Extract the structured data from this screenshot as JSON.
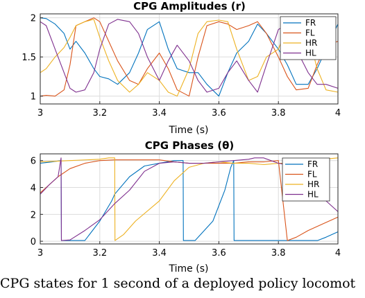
{
  "caption": "CPG states for 1 second of a deployed policy locomot",
  "colors": {
    "FR": "#0072BD",
    "FL": "#D95319",
    "HR": "#EDB120",
    "HL": "#7E2F8E"
  },
  "chart_data": [
    {
      "type": "line",
      "title": "CPG Amplitudes (r)",
      "xlabel": "Time (s)",
      "ylabel": "",
      "xlim": [
        3,
        4
      ],
      "ylim": [
        0.9,
        2.05
      ],
      "xticks": [
        3,
        3.2,
        3.4,
        3.6,
        3.8,
        4
      ],
      "xtick_labels": [
        "3",
        "3.2",
        "3.4",
        "3.6",
        "3.8",
        "4"
      ],
      "yticks": [
        1,
        1.5,
        2
      ],
      "ytick_labels": [
        "1",
        "1.5",
        "2"
      ],
      "grid": true,
      "legend": "top-right",
      "series": [
        {
          "name": "FR",
          "color": "#0072BD",
          "x": [
            3.0,
            3.02,
            3.05,
            3.08,
            3.1,
            3.12,
            3.15,
            3.18,
            3.2,
            3.23,
            3.26,
            3.3,
            3.33,
            3.36,
            3.4,
            3.43,
            3.46,
            3.5,
            3.53,
            3.56,
            3.6,
            3.63,
            3.66,
            3.7,
            3.73,
            3.76,
            3.8,
            3.83,
            3.86,
            3.9,
            3.93,
            3.96,
            4.0
          ],
          "y": [
            2.0,
            1.99,
            1.92,
            1.8,
            1.6,
            1.7,
            1.55,
            1.35,
            1.25,
            1.22,
            1.15,
            1.3,
            1.55,
            1.85,
            1.95,
            1.6,
            1.35,
            1.3,
            1.3,
            1.15,
            1.0,
            1.3,
            1.55,
            1.7,
            1.92,
            1.8,
            1.6,
            1.4,
            1.15,
            1.15,
            1.35,
            1.6,
            1.92
          ]
        },
        {
          "name": "FL",
          "color": "#D95319",
          "x": [
            3.0,
            3.02,
            3.05,
            3.08,
            3.1,
            3.12,
            3.15,
            3.18,
            3.2,
            3.23,
            3.26,
            3.3,
            3.33,
            3.36,
            3.4,
            3.43,
            3.46,
            3.5,
            3.53,
            3.56,
            3.6,
            3.63,
            3.66,
            3.7,
            3.73,
            3.76,
            3.8,
            3.83,
            3.86,
            3.9,
            3.93,
            3.96,
            4.0
          ],
          "y": [
            1.0,
            1.01,
            1.0,
            1.08,
            1.4,
            1.9,
            1.95,
            2.0,
            1.95,
            1.7,
            1.45,
            1.2,
            1.15,
            1.35,
            1.55,
            1.35,
            1.08,
            1.0,
            1.5,
            1.9,
            1.95,
            1.92,
            1.85,
            1.9,
            1.95,
            1.8,
            1.5,
            1.25,
            1.08,
            1.1,
            1.4,
            1.65,
            1.7
          ]
        },
        {
          "name": "HR",
          "color": "#EDB120",
          "x": [
            3.0,
            3.02,
            3.05,
            3.08,
            3.1,
            3.12,
            3.15,
            3.18,
            3.2,
            3.23,
            3.26,
            3.3,
            3.33,
            3.36,
            3.4,
            3.43,
            3.46,
            3.5,
            3.53,
            3.56,
            3.6,
            3.63,
            3.66,
            3.7,
            3.73,
            3.76,
            3.8,
            3.83,
            3.86,
            3.9,
            3.93,
            3.96,
            4.0
          ],
          "y": [
            1.3,
            1.35,
            1.5,
            1.62,
            1.75,
            1.9,
            1.95,
            1.98,
            1.75,
            1.45,
            1.2,
            1.05,
            1.15,
            1.3,
            1.2,
            1.05,
            1.0,
            1.35,
            1.8,
            1.95,
            1.97,
            1.95,
            1.6,
            1.2,
            1.25,
            1.5,
            1.6,
            1.9,
            1.95,
            1.8,
            1.35,
            1.08,
            1.05
          ]
        },
        {
          "name": "HL",
          "color": "#7E2F8E",
          "x": [
            3.0,
            3.02,
            3.05,
            3.08,
            3.1,
            3.12,
            3.15,
            3.18,
            3.2,
            3.23,
            3.26,
            3.3,
            3.33,
            3.36,
            3.4,
            3.43,
            3.46,
            3.5,
            3.53,
            3.56,
            3.6,
            3.63,
            3.66,
            3.7,
            3.73,
            3.76,
            3.8,
            3.83,
            3.86,
            3.9,
            3.93,
            3.96,
            4.0
          ],
          "y": [
            1.95,
            1.9,
            1.6,
            1.3,
            1.1,
            1.05,
            1.08,
            1.3,
            1.6,
            1.92,
            1.98,
            1.95,
            1.8,
            1.5,
            1.2,
            1.45,
            1.65,
            1.45,
            1.2,
            1.05,
            1.1,
            1.3,
            1.45,
            1.2,
            1.05,
            1.4,
            1.85,
            1.92,
            1.6,
            1.3,
            1.15,
            1.15,
            1.1
          ]
        }
      ]
    },
    {
      "type": "line",
      "title": "CPG Phases (θ)",
      "xlabel": "Time (s)",
      "ylabel": "",
      "xlim": [
        3,
        4
      ],
      "ylim": [
        -0.2,
        6.5
      ],
      "xticks": [
        3,
        3.2,
        3.4,
        3.6,
        3.8,
        4
      ],
      "xtick_labels": [
        "3",
        "3.2",
        "3.4",
        "3.6",
        "3.8",
        "4"
      ],
      "yticks": [
        0,
        2,
        4,
        6
      ],
      "ytick_labels": [
        "0",
        "2",
        "4",
        "6"
      ],
      "grid": true,
      "legend": "right",
      "series": [
        {
          "name": "FR",
          "color": "#0072BD",
          "x": [
            3.0,
            3.04,
            3.07,
            3.071,
            3.1,
            3.15,
            3.2,
            3.24,
            3.25,
            3.3,
            3.35,
            3.4,
            3.45,
            3.48,
            3.481,
            3.52,
            3.58,
            3.62,
            3.64,
            3.65,
            3.651,
            3.75,
            3.85,
            3.9,
            3.92,
            3.93,
            3.931,
            3.96,
            4.0
          ],
          "y": [
            5.8,
            5.9,
            6.0,
            0.05,
            0.05,
            0.05,
            1.5,
            3.0,
            3.5,
            4.8,
            5.6,
            5.8,
            6.0,
            6.0,
            0.05,
            0.05,
            1.5,
            3.8,
            5.5,
            6.0,
            0.05,
            0.05,
            0.05,
            0.05,
            0.05,
            0.05,
            0.05,
            0.3,
            0.7
          ]
        },
        {
          "name": "FL",
          "color": "#D95319",
          "x": [
            3.0,
            3.03,
            3.06,
            3.1,
            3.15,
            3.2,
            3.25,
            3.3,
            3.35,
            3.4,
            3.45,
            3.5,
            3.55,
            3.6,
            3.65,
            3.7,
            3.75,
            3.8,
            3.83,
            3.86,
            3.9,
            3.95,
            4.0
          ],
          "y": [
            3.6,
            4.2,
            4.8,
            5.4,
            5.8,
            6.0,
            6.05,
            6.05,
            6.05,
            6.05,
            5.9,
            5.8,
            5.8,
            5.8,
            5.8,
            5.9,
            5.9,
            6.0,
            0.05,
            0.3,
            0.8,
            1.3,
            1.8
          ]
        },
        {
          "name": "HR",
          "color": "#EDB120",
          "x": [
            3.0,
            3.05,
            3.1,
            3.2,
            3.23,
            3.25,
            3.251,
            3.28,
            3.32,
            3.4,
            3.45,
            3.5,
            3.55,
            3.6,
            3.65,
            3.7,
            3.75,
            3.8,
            3.85,
            3.9,
            3.95,
            4.0
          ],
          "y": [
            5.9,
            5.95,
            6.0,
            6.1,
            6.2,
            6.2,
            0.05,
            0.5,
            1.5,
            3.0,
            4.5,
            5.5,
            5.8,
            5.9,
            5.8,
            5.8,
            5.7,
            5.8,
            5.8,
            6.0,
            6.1,
            6.2
          ]
        },
        {
          "name": "HL",
          "color": "#7E2F8E",
          "x": [
            3.0,
            3.03,
            3.06,
            3.07,
            3.071,
            3.1,
            3.15,
            3.2,
            3.25,
            3.3,
            3.35,
            3.4,
            3.45,
            3.5,
            3.55,
            3.6,
            3.65,
            3.7,
            3.72,
            3.75,
            3.8,
            3.85,
            3.9,
            3.95,
            4.0
          ],
          "y": [
            3.5,
            4.2,
            4.8,
            6.2,
            0.05,
            0.1,
            0.8,
            1.6,
            2.8,
            3.8,
            5.2,
            5.8,
            5.9,
            5.8,
            5.8,
            5.9,
            6.0,
            6.1,
            6.2,
            6.2,
            5.8,
            5.6,
            4.5,
            3.2,
            2.2
          ]
        }
      ]
    }
  ]
}
